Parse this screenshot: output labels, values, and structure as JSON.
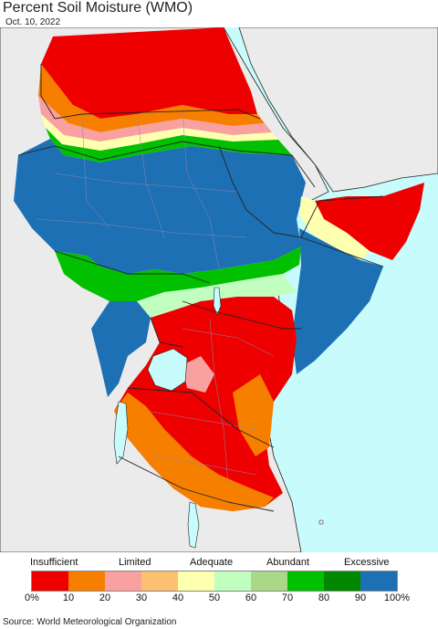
{
  "header": {
    "title": "Percent Soil Moisture (WMO)",
    "date": "Oct. 10, 2022"
  },
  "legend": {
    "categories": [
      "Insufficient",
      "Limited",
      "Adequate",
      "Abundant",
      "Excessive"
    ],
    "colors": [
      "#ee0000",
      "#f77f00",
      "#f9a0a0",
      "#fcc070",
      "#ffffb0",
      "#c0ffc0",
      "#a8d888",
      "#00c000",
      "#008800",
      "#1e70b4"
    ],
    "ticks": [
      "0%",
      "10",
      "20",
      "30",
      "40",
      "50",
      "60",
      "70",
      "80",
      "90",
      "100%"
    ]
  },
  "footer": {
    "source": "Source: World Meteorological Organization"
  },
  "colors": {
    "water": "#c8fcfc",
    "land_outside": "#ebebeb",
    "border": "#222222",
    "admin": "#8888aa"
  }
}
